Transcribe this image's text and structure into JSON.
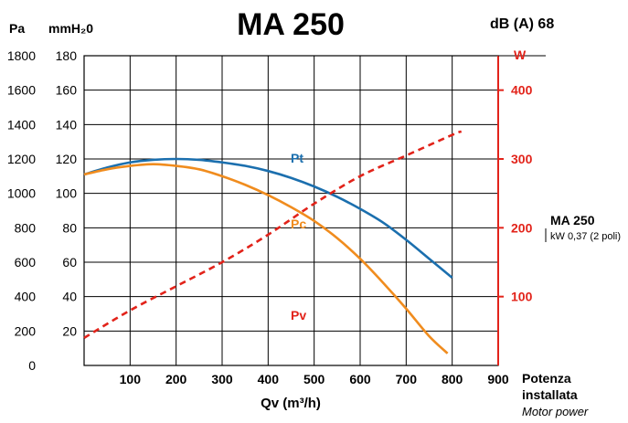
{
  "chart_data": {
    "type": "line",
    "title": "MA 250",
    "noise_label": "dB (A) 68",
    "left_unit_pa": "Pa",
    "left_unit_mmh2o": "mmH₂0",
    "right_unit": "W",
    "xlabel": "Qv (m³/h)",
    "x_ticks": [
      "100",
      "200",
      "300",
      "400",
      "500",
      "600",
      "700",
      "800",
      "900"
    ],
    "x_ticks_values": [
      100,
      200,
      300,
      400,
      500,
      600,
      700,
      800,
      900
    ],
    "xlim": [
      0,
      900
    ],
    "y_ticks_pa": [
      "0",
      "200",
      "400",
      "600",
      "800",
      "1000",
      "1200",
      "1400",
      "1600",
      "1800"
    ],
    "y_ticks_mmh2o": [
      "20",
      "40",
      "60",
      "80",
      "100",
      "120",
      "140",
      "160",
      "180"
    ],
    "ylim_mmh2o": [
      0,
      180
    ],
    "y_ticks_w": [
      "100",
      "200",
      "300",
      "400"
    ],
    "y_ticks_w_values": [
      100,
      200,
      300,
      400
    ],
    "ylim_w": [
      0,
      450
    ],
    "grid": true,
    "series": [
      {
        "name": "Pt",
        "axis": "mmH2O",
        "color": "#1b6fae",
        "x": [
          0,
          50,
          100,
          150,
          200,
          250,
          300,
          350,
          400,
          450,
          500,
          550,
          600,
          650,
          700,
          750,
          800
        ],
        "y": [
          111,
          115,
          118,
          119.5,
          120,
          119.5,
          118,
          116,
          113,
          109,
          104,
          98,
          91,
          83,
          73,
          62,
          51
        ]
      },
      {
        "name": "Pc",
        "axis": "mmH2O",
        "color": "#f08c1e",
        "x": [
          0,
          50,
          100,
          150,
          200,
          250,
          300,
          350,
          400,
          450,
          500,
          550,
          600,
          650,
          700,
          750,
          790
        ],
        "y": [
          111,
          114,
          116,
          117,
          116,
          114,
          110,
          105,
          99,
          92,
          84,
          74,
          62,
          48,
          33,
          17,
          7
        ]
      },
      {
        "name": "Pv",
        "axis": "W",
        "color": "#e2231a",
        "x": [
          0,
          100,
          200,
          300,
          400,
          500,
          600,
          700,
          800,
          820
        ],
        "y": [
          40,
          80,
          115,
          150,
          190,
          235,
          275,
          305,
          335,
          340
        ]
      }
    ],
    "motor_label": {
      "model": "MA 250",
      "power": "kW 0,37 (2 poli)"
    },
    "power_label_line1": "Potenza",
    "power_label_line2": "installata",
    "power_label_en": "Motor power"
  }
}
